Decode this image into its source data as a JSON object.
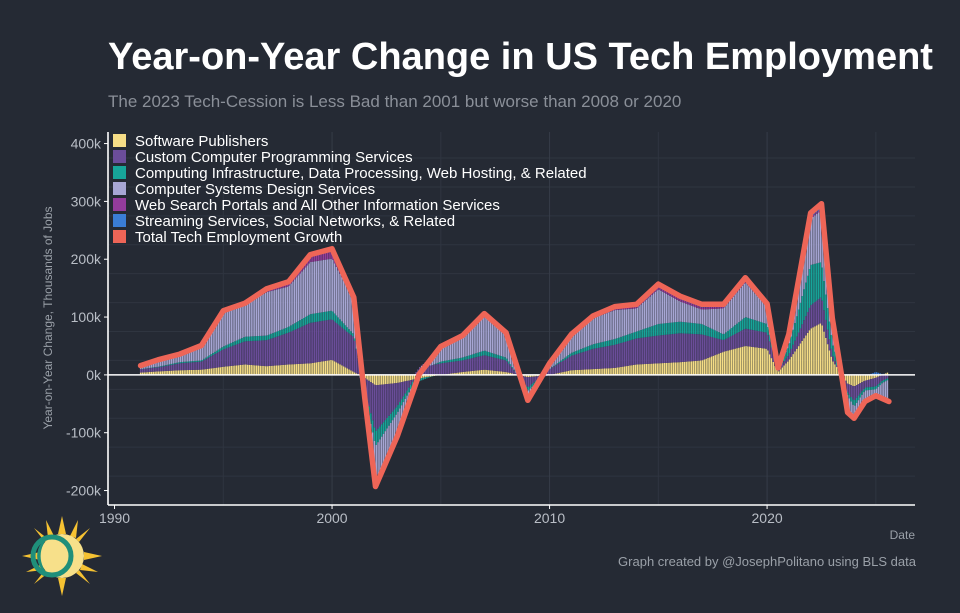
{
  "header": {
    "title": "Year-on-Year Change in US Tech Employment",
    "subtitle": "The 2023 Tech-Cession is Less Bad than 2001 but worse than 2008 or 2020"
  },
  "footer": {
    "credit": "Graph created by @JosephPolitano using BLS data"
  },
  "logo": {
    "icon": "sun-logo-icon"
  },
  "chart_data": {
    "type": "bar",
    "title": "Year-on-Year Change in US Tech Employment",
    "subtitle": "The 2023 Tech-Cession is Less Bad than 2001 but worse than 2008 or 2020",
    "xlabel": "Date",
    "ylabel": "Year-on-Year Change, Thousands of Jobs",
    "xlim": [
      1989.7,
      2026.8
    ],
    "ylim": [
      -225,
      420
    ],
    "x_ticks": [
      1990,
      2000,
      2010,
      2020
    ],
    "x_tick_labels": [
      "1990",
      "2000",
      "2010",
      "2020"
    ],
    "y_ticks": [
      -200,
      -100,
      0,
      100,
      200,
      300,
      400
    ],
    "y_tick_labels": [
      "-200k",
      "-100k",
      "0k",
      "100k",
      "200k",
      "300k",
      "400k"
    ],
    "grid": true,
    "stacked": true,
    "legend_position": "top-left",
    "x": [
      1991.2,
      1992,
      1993,
      1994,
      1995,
      1996,
      1997,
      1998,
      1999,
      2000,
      2001,
      2001.5,
      2002,
      2003,
      2004,
      2005,
      2006,
      2007,
      2008,
      2009,
      2010,
      2011,
      2012,
      2013,
      2014,
      2015,
      2016,
      2017,
      2018,
      2019,
      2020,
      2020.5,
      2021,
      2022,
      2022.5,
      2023,
      2023.7,
      2024,
      2024.5,
      2025,
      2025.6
    ],
    "series": [
      {
        "name": "Software Publishers",
        "color": "#f5dd86",
        "values": [
          4,
          6,
          8,
          9,
          14,
          18,
          15,
          18,
          20,
          26,
          5,
          -5,
          -18,
          -14,
          -6,
          0,
          5,
          9,
          5,
          -4,
          0,
          8,
          10,
          12,
          18,
          20,
          22,
          25,
          40,
          50,
          45,
          5,
          25,
          80,
          90,
          25,
          -15,
          -20,
          -10,
          -5,
          5
        ]
      },
      {
        "name": "Custom Computer Programming Services",
        "color": "#6b4d9a",
        "values": [
          6,
          7,
          12,
          14,
          30,
          40,
          45,
          55,
          70,
          70,
          60,
          -20,
          -80,
          -40,
          12,
          20,
          20,
          25,
          20,
          -18,
          10,
          25,
          35,
          40,
          45,
          48,
          50,
          45,
          20,
          30,
          28,
          4,
          10,
          40,
          45,
          10,
          -15,
          -25,
          -12,
          -15,
          -5
        ]
      },
      {
        "name": "Computing Infrastructure, Data Processing, Web Hosting, & Related",
        "color": "#17a59a",
        "values": [
          0,
          1,
          2,
          2,
          5,
          8,
          8,
          10,
          15,
          15,
          5,
          -10,
          -25,
          -12,
          -5,
          3,
          5,
          8,
          5,
          -6,
          0,
          5,
          8,
          10,
          12,
          20,
          20,
          18,
          10,
          20,
          15,
          0,
          15,
          70,
          60,
          20,
          -5,
          -10,
          -5,
          -5,
          -3
        ]
      },
      {
        "name": "Computer Systems Design Services",
        "color": "#a7a6d4",
        "values": [
          6,
          12,
          14,
          25,
          60,
          55,
          75,
          70,
          90,
          90,
          60,
          0,
          -60,
          -35,
          0,
          25,
          35,
          60,
          40,
          -14,
          10,
          30,
          45,
          50,
          40,
          60,
          35,
          25,
          45,
          60,
          30,
          3,
          15,
          80,
          90,
          40,
          -25,
          -15,
          -15,
          -15,
          -40
        ]
      },
      {
        "name": "Web Search Portals and All Other Information Services",
        "color": "#943c9c",
        "values": [
          0,
          0,
          0,
          1,
          2,
          3,
          5,
          6,
          10,
          12,
          2,
          -3,
          -6,
          -3,
          0,
          1,
          2,
          3,
          2,
          -1,
          0,
          1,
          2,
          3,
          3,
          4,
          4,
          4,
          3,
          3,
          2,
          0,
          2,
          3,
          3,
          1,
          -2,
          -2,
          -2,
          -1,
          -1
        ]
      },
      {
        "name": "Streaming Services, Social Networks, & Related",
        "color": "#3a7dd6",
        "values": [
          0,
          0,
          0,
          0,
          0,
          0,
          1,
          2,
          3,
          5,
          2,
          -1,
          -4,
          -2,
          0,
          0,
          1,
          1,
          1,
          -1,
          0,
          1,
          2,
          3,
          4,
          5,
          5,
          5,
          4,
          5,
          3,
          0,
          3,
          7,
          8,
          2,
          -3,
          -3,
          -2,
          5,
          -2
        ]
      }
    ],
    "total": {
      "name": "Total Tech Employment Growth",
      "color": "#ee6557",
      "values": [
        16,
        26,
        36,
        51,
        111,
        124,
        149,
        161,
        208,
        218,
        134,
        -39,
        -193,
        -106,
        1,
        49,
        68,
        106,
        73,
        -44,
        20,
        70,
        102,
        118,
        122,
        157,
        136,
        122,
        122,
        168,
        123,
        12,
        70,
        280,
        296,
        98,
        -65,
        -75,
        -46,
        -36,
        -46
      ]
    }
  }
}
